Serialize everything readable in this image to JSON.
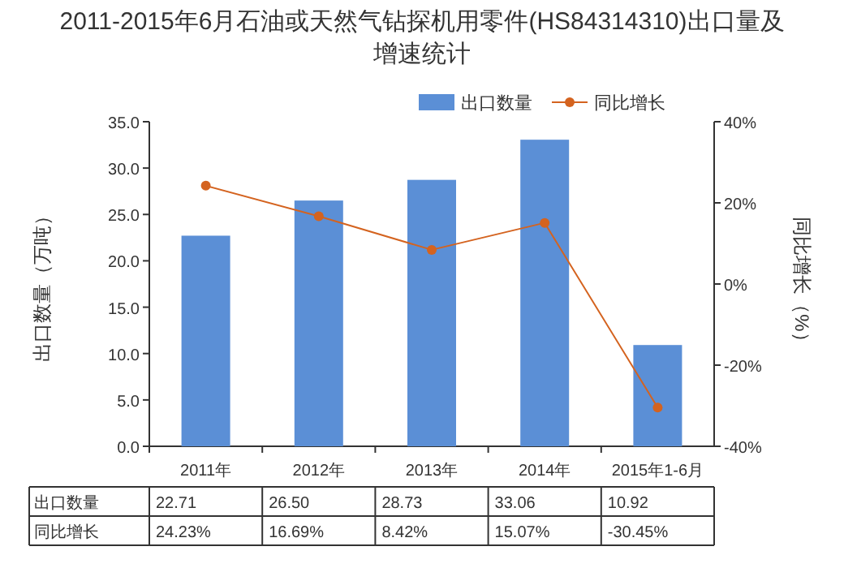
{
  "chart_data": {
    "type": "bar",
    "title": "2011-2015年6月石油或天然气钻探机用零件(HS84314310)出口量及增速统计",
    "ylabel": "出口数量（万吨）",
    "y2label": "同比增长（%）",
    "categories": [
      "2011年",
      "2012年",
      "2013年",
      "2014年",
      "2015年1-6月"
    ],
    "series": [
      {
        "name": "出口数量",
        "color": "#5b8fd6",
        "values": [
          22.71,
          26.5,
          28.73,
          33.06,
          10.92
        ],
        "value_labels": [
          "22.71",
          "26.50",
          "28.73",
          "33.06",
          "10.92"
        ]
      },
      {
        "name": "同比增长",
        "type": "line",
        "axis": "y2",
        "color": "#d4631f",
        "marker": "circle",
        "values": [
          24.23,
          16.69,
          8.42,
          15.07,
          -30.45
        ],
        "value_labels": [
          "24.23%",
          "16.69%",
          "8.42%",
          "15.07%",
          "-30.45%"
        ]
      }
    ],
    "ylim": [
      0,
      35
    ],
    "yticks": [
      {
        "value": 0,
        "label": "0.0"
      },
      {
        "value": 5,
        "label": "5.0"
      },
      {
        "value": 10,
        "label": "10.0"
      },
      {
        "value": 15,
        "label": "15.0"
      },
      {
        "value": 20,
        "label": "20.0"
      },
      {
        "value": 25,
        "label": "25.0"
      },
      {
        "value": 30,
        "label": "30.0"
      },
      {
        "value": 35,
        "label": "35.0"
      }
    ],
    "y2lim": [
      -40,
      40
    ],
    "y2ticks": [
      {
        "value": -40,
        "label": "-40%"
      },
      {
        "value": -20,
        "label": "-20%"
      },
      {
        "value": 0,
        "label": "0%"
      },
      {
        "value": 20,
        "label": "20%"
      },
      {
        "value": 40,
        "label": "40%"
      }
    ],
    "legend": "top right",
    "grid": false
  }
}
